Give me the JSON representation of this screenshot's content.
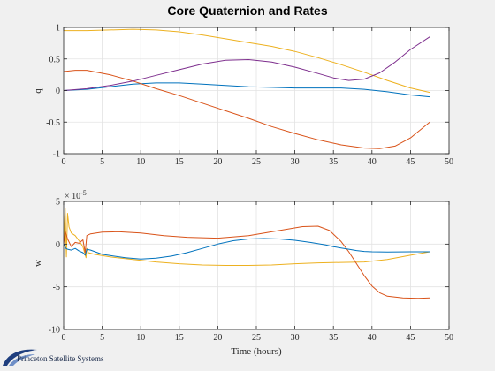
{
  "colors": {
    "figure_bg": "#f0f0f0",
    "axes_bg": "#ffffff",
    "grid": "#e3e3e3",
    "axis": "#262626",
    "blue": "#0072BD",
    "orange": "#D95319",
    "yellow": "#EDB120",
    "purple": "#7E2F8E",
    "logo_blue": "#1f3f7f"
  },
  "chart_data": [
    {
      "type": "line",
      "title": "Core Quaternion and Rates",
      "xlabel": "",
      "ylabel": "q",
      "xlim": [
        0,
        50
      ],
      "ylim": [
        -1,
        1
      ],
      "xticks": [
        0,
        5,
        10,
        15,
        20,
        25,
        30,
        35,
        40,
        45,
        50
      ],
      "yticks": [
        -1,
        -0.5,
        0,
        0.5,
        1
      ],
      "ytick_labels": [
        "-1",
        "-0.5",
        "0",
        "0.5",
        "1"
      ],
      "grid": true,
      "series": [
        {
          "color": "blue",
          "x": [
            0,
            3,
            6,
            9,
            12,
            15,
            18,
            21,
            24,
            27,
            30,
            33,
            36,
            39,
            42,
            45,
            47.5
          ],
          "y": [
            0,
            0.02,
            0.06,
            0.1,
            0.12,
            0.12,
            0.1,
            0.08,
            0.06,
            0.05,
            0.04,
            0.04,
            0.04,
            0.02,
            -0.02,
            -0.07,
            -0.1
          ]
        },
        {
          "color": "orange",
          "x": [
            0,
            1.5,
            3,
            6,
            9,
            12,
            15,
            18,
            21,
            24,
            27,
            30,
            33,
            36,
            39,
            41,
            43,
            45,
            47.5
          ],
          "y": [
            0.3,
            0.32,
            0.32,
            0.25,
            0.15,
            0.03,
            -0.08,
            -0.2,
            -0.32,
            -0.44,
            -0.57,
            -0.68,
            -0.78,
            -0.86,
            -0.91,
            -0.92,
            -0.88,
            -0.75,
            -0.5
          ]
        },
        {
          "color": "yellow",
          "x": [
            0,
            3,
            6,
            9,
            12,
            15,
            18,
            21,
            24,
            27,
            30,
            33,
            36,
            39,
            42,
            45,
            47.5
          ],
          "y": [
            0.95,
            0.95,
            0.96,
            0.97,
            0.96,
            0.93,
            0.88,
            0.82,
            0.76,
            0.7,
            0.62,
            0.52,
            0.41,
            0.29,
            0.16,
            0.04,
            -0.03
          ]
        },
        {
          "color": "purple",
          "x": [
            0,
            3,
            6,
            9,
            12,
            15,
            18,
            21,
            24,
            27,
            30,
            33,
            35,
            37,
            39,
            41,
            43,
            45,
            47.5
          ],
          "y": [
            0,
            0.03,
            0.08,
            0.15,
            0.24,
            0.33,
            0.42,
            0.48,
            0.49,
            0.45,
            0.37,
            0.27,
            0.2,
            0.16,
            0.18,
            0.28,
            0.45,
            0.65,
            0.85
          ]
        }
      ]
    },
    {
      "type": "line",
      "title": "",
      "xlabel": "Time (hours)",
      "ylabel": "w",
      "xlim": [
        0,
        50
      ],
      "ylim": [
        -10,
        5
      ],
      "y_exponent_label": "× 10",
      "y_exponent_power": "-5",
      "xticks": [
        0,
        5,
        10,
        15,
        20,
        25,
        30,
        35,
        40,
        45,
        50
      ],
      "yticks": [
        -10,
        -5,
        0,
        5
      ],
      "ytick_labels": [
        "-10",
        "-5",
        "0",
        "5"
      ],
      "grid": true,
      "series": [
        {
          "color": "yellow",
          "x": [
            0,
            0.2,
            0.35,
            0.5,
            0.7,
            1,
            1.5,
            2,
            2.5,
            2.9,
            3,
            3.2,
            4,
            6,
            9,
            12,
            15,
            18,
            21,
            24,
            27,
            30,
            33,
            36,
            39,
            42,
            45,
            47.5
          ],
          "y": [
            0,
            4.2,
            -1.5,
            3.6,
            2,
            1.3,
            1,
            0.4,
            -0.3,
            -1.6,
            -0.5,
            -1,
            -1.2,
            -1.5,
            -1.8,
            -2.1,
            -2.3,
            -2.45,
            -2.5,
            -2.5,
            -2.45,
            -2.3,
            -2.2,
            -2.15,
            -2.1,
            -1.8,
            -1.3,
            -0.9
          ]
        },
        {
          "color": "orange",
          "x": [
            0,
            0.2,
            0.5,
            1,
            1.5,
            2,
            2.5,
            2.8,
            3,
            3.5,
            5,
            7,
            10,
            13,
            16,
            20,
            24,
            28,
            31,
            33,
            34.5,
            36,
            37,
            38,
            39,
            40,
            41,
            42,
            44,
            46,
            47.5
          ],
          "y": [
            0,
            1.5,
            0.6,
            -0.3,
            0.2,
            0.1,
            0.5,
            -1,
            1,
            1.2,
            1.4,
            1.45,
            1.3,
            1,
            0.8,
            0.7,
            1,
            1.6,
            2.05,
            2.1,
            1.6,
            0.3,
            -0.9,
            -2.3,
            -3.7,
            -4.9,
            -5.7,
            -6.1,
            -6.3,
            -6.35,
            -6.3
          ]
        },
        {
          "color": "blue",
          "x": [
            0,
            0.3,
            0.5,
            1,
            1.5,
            2,
            2.5,
            2.8,
            3,
            3.5,
            5,
            8,
            10,
            12,
            14,
            16,
            18,
            20,
            22,
            24,
            26,
            28,
            30,
            32,
            34,
            35,
            36,
            37,
            38,
            39,
            40,
            42,
            45,
            47.5
          ],
          "y": [
            0,
            -0.5,
            -0.6,
            -0.7,
            -0.5,
            -0.8,
            -1,
            -1.3,
            -0.6,
            -0.7,
            -1.2,
            -1.6,
            -1.75,
            -1.65,
            -1.4,
            -1,
            -0.5,
            0,
            0.4,
            0.6,
            0.65,
            0.6,
            0.45,
            0.2,
            -0.1,
            -0.3,
            -0.45,
            -0.6,
            -0.75,
            -0.85,
            -0.9,
            -0.92,
            -0.9,
            -0.9
          ]
        }
      ]
    }
  ],
  "logo": {
    "text": "Princeton Satellite Systems"
  }
}
